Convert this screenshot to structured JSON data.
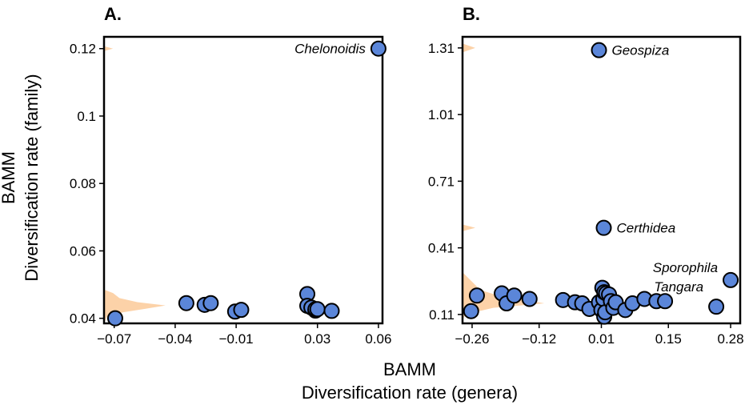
{
  "figure": {
    "xlabel_line1": "BAMM",
    "xlabel_line2": "Diversification rate (genera)",
    "ylabel_line1": "BAMM",
    "ylabel_line2": "Diversification rate (family)",
    "colors": {
      "point_fill": "#5b86d9",
      "point_stroke": "#000000",
      "density_fill": "#fcd2a8"
    }
  },
  "chart_data": [
    {
      "type": "scatter",
      "panel_label": "A.",
      "xlim": [
        -0.075,
        0.062
      ],
      "ylim": [
        0.0385,
        0.1235
      ],
      "xticks": [
        -0.07,
        -0.04,
        -0.01,
        0.03,
        0.06
      ],
      "xtick_labels": [
        "−0.07",
        "−0.04",
        "−0.01",
        "0.03",
        "0.06"
      ],
      "yticks": [
        0.04,
        0.06,
        0.08,
        0.1,
        0.12
      ],
      "ytick_labels": [
        "0.04",
        "0.06",
        "0.08",
        "0.1",
        "0.12"
      ],
      "points": [
        {
          "x": -0.0695,
          "y": 0.04
        },
        {
          "x": -0.0345,
          "y": 0.0445
        },
        {
          "x": -0.0255,
          "y": 0.044
        },
        {
          "x": -0.0225,
          "y": 0.0445
        },
        {
          "x": -0.0105,
          "y": 0.042
        },
        {
          "x": -0.0075,
          "y": 0.0425
        },
        {
          "x": 0.025,
          "y": 0.0472
        },
        {
          "x": 0.025,
          "y": 0.0437
        },
        {
          "x": 0.027,
          "y": 0.0432
        },
        {
          "x": 0.029,
          "y": 0.0423
        },
        {
          "x": 0.029,
          "y": 0.0427
        },
        {
          "x": 0.03,
          "y": 0.0427
        },
        {
          "x": 0.037,
          "y": 0.0422
        },
        {
          "x": 0.06,
          "y": 0.12
        }
      ],
      "annotations": [
        {
          "text": "Chelonoidis",
          "x": 0.06,
          "y": 0.12,
          "anchor": "end"
        }
      ],
      "density": [
        {
          "y": 0.0385,
          "w": 0.0
        },
        {
          "y": 0.0405,
          "w": 0.012
        },
        {
          "y": 0.0418,
          "w": 0.075
        },
        {
          "y": 0.0428,
          "w": 0.16
        },
        {
          "y": 0.0438,
          "w": 0.24
        },
        {
          "y": 0.0448,
          "w": 0.13
        },
        {
          "y": 0.046,
          "w": 0.06
        },
        {
          "y": 0.0475,
          "w": 0.035
        },
        {
          "y": 0.0485,
          "w": 0.0
        },
        {
          "y": 0.1193,
          "w": 0.0
        },
        {
          "y": 0.12,
          "w": 0.035
        },
        {
          "y": 0.1207,
          "w": 0.0
        }
      ]
    },
    {
      "type": "scatter",
      "panel_label": "B.",
      "xlim": [
        -0.28,
        0.3
      ],
      "ylim": [
        0.07,
        1.36
      ],
      "xticks": [
        -0.26,
        -0.12,
        0.01,
        0.15,
        0.28
      ],
      "xtick_labels": [
        "−0.26",
        "−0.12",
        "0.01",
        "0.15",
        "0.28"
      ],
      "yticks": [
        0.11,
        0.41,
        0.71,
        1.01,
        1.31
      ],
      "ytick_labels": [
        "0.11",
        "0.41",
        "0.71",
        "1.01",
        "1.31"
      ],
      "points": [
        {
          "x": -0.262,
          "y": 0.125
        },
        {
          "x": -0.25,
          "y": 0.195
        },
        {
          "x": -0.198,
          "y": 0.205
        },
        {
          "x": -0.188,
          "y": 0.16
        },
        {
          "x": -0.172,
          "y": 0.195
        },
        {
          "x": -0.14,
          "y": 0.18
        },
        {
          "x": -0.07,
          "y": 0.175
        },
        {
          "x": -0.045,
          "y": 0.165
        },
        {
          "x": -0.03,
          "y": 0.16
        },
        {
          "x": -0.015,
          "y": 0.135
        },
        {
          "x": 0.005,
          "y": 0.165
        },
        {
          "x": 0.01,
          "y": 0.13
        },
        {
          "x": 0.012,
          "y": 0.23
        },
        {
          "x": 0.014,
          "y": 0.18
        },
        {
          "x": 0.016,
          "y": 0.21
        },
        {
          "x": 0.016,
          "y": 0.1
        },
        {
          "x": 0.018,
          "y": 0.12
        },
        {
          "x": 0.02,
          "y": 0.205
        },
        {
          "x": 0.026,
          "y": 0.2
        },
        {
          "x": 0.03,
          "y": 0.17
        },
        {
          "x": 0.035,
          "y": 0.14
        },
        {
          "x": 0.04,
          "y": 0.165
        },
        {
          "x": 0.06,
          "y": 0.13
        },
        {
          "x": 0.075,
          "y": 0.16
        },
        {
          "x": 0.1,
          "y": 0.18
        },
        {
          "x": 0.125,
          "y": 0.17
        },
        {
          "x": 0.143,
          "y": 0.17
        },
        {
          "x": 0.25,
          "y": 0.145
        },
        {
          "x": 0.28,
          "y": 0.265
        },
        {
          "x": 0.005,
          "y": 1.3
        },
        {
          "x": 0.015,
          "y": 0.5
        }
      ],
      "annotations": [
        {
          "text": "Geospiza",
          "x": 0.005,
          "y": 1.3,
          "anchor": "start"
        },
        {
          "text": "Certhidea",
          "x": 0.015,
          "y": 0.5,
          "anchor": "start"
        },
        {
          "text": "Sporophila",
          "x": 0.28,
          "y": 0.265,
          "anchor": "end",
          "dy": -16
        },
        {
          "text": "Tangara",
          "x": 0.25,
          "y": 0.145,
          "anchor": "end",
          "dy": -25
        }
      ],
      "density": [
        {
          "y": 0.08,
          "w": 0.0
        },
        {
          "y": 0.11,
          "w": 0.01
        },
        {
          "y": 0.14,
          "w": 0.12
        },
        {
          "y": 0.16,
          "w": 0.32
        },
        {
          "y": 0.175,
          "w": 0.25
        },
        {
          "y": 0.195,
          "w": 0.14
        },
        {
          "y": 0.22,
          "w": 0.07
        },
        {
          "y": 0.26,
          "w": 0.035
        },
        {
          "y": 0.3,
          "w": 0.0
        },
        {
          "y": 0.485,
          "w": 0.0
        },
        {
          "y": 0.5,
          "w": 0.05
        },
        {
          "y": 0.515,
          "w": 0.0
        },
        {
          "y": 1.29,
          "w": 0.0
        },
        {
          "y": 1.31,
          "w": 0.05
        },
        {
          "y": 1.33,
          "w": 0.0
        }
      ]
    }
  ]
}
